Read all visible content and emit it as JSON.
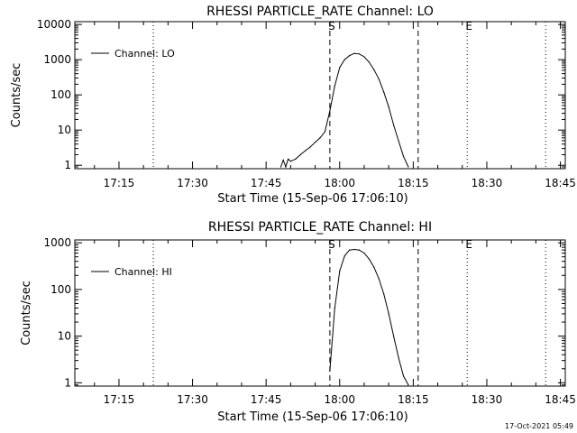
{
  "footer": {
    "timestamp": "17-Oct-2021 05:49"
  },
  "chart_data": [
    {
      "type": "line",
      "title": "RHESSI PARTICLE_RATE Channel: LO",
      "xlabel": "Start Time (15-Sep-06 17:06:10)",
      "ylabel": "Counts/sec",
      "log_y": true,
      "ylim": [
        0.8,
        12000
      ],
      "xlim": [
        "17:06",
        "18:46"
      ],
      "x_ticks": [
        "17:15",
        "17:30",
        "17:45",
        "18:00",
        "18:15",
        "18:30",
        "18:45"
      ],
      "y_ticks": [
        "1",
        "10",
        "100",
        "1000",
        "10000"
      ],
      "legend": {
        "position": "top-left",
        "entries": [
          "Channel: LO"
        ]
      },
      "markers": [
        {
          "time": "17:22",
          "style": "dotted",
          "label": ""
        },
        {
          "time": "17:58",
          "style": "dashed",
          "label": "S"
        },
        {
          "time": "18:16",
          "style": "dashed",
          "label": ""
        },
        {
          "time": "18:26",
          "style": "dotted",
          "label": "E"
        },
        {
          "time": "18:42",
          "style": "dotted",
          "label": ""
        }
      ],
      "series": [
        {
          "name": "Channel: LO",
          "x": [
            "17:48",
            "17:48:30",
            "17:49",
            "17:49:30",
            "17:50",
            "17:51",
            "17:52",
            "17:53",
            "17:54",
            "17:55",
            "17:56",
            "17:57",
            "17:58",
            "17:59",
            "18:00",
            "18:01",
            "18:02",
            "18:03",
            "18:04",
            "18:05",
            "18:06",
            "18:07",
            "18:08",
            "18:09",
            "18:10",
            "18:11",
            "18:12",
            "18:13",
            "18:14"
          ],
          "values": [
            0.9,
            1.4,
            0.9,
            1.5,
            1.3,
            1.5,
            2.0,
            2.6,
            3.3,
            4.5,
            6.0,
            9.0,
            35,
            180,
            600,
            1000,
            1300,
            1500,
            1450,
            1200,
            850,
            520,
            280,
            120,
            45,
            14,
            5,
            1.8,
            0.9
          ]
        }
      ]
    },
    {
      "type": "line",
      "title": "RHESSI PARTICLE_RATE Channel: HI",
      "xlabel": "Start Time (15-Sep-06 17:06:10)",
      "ylabel": "Counts/sec",
      "log_y": true,
      "ylim": [
        0.85,
        1150
      ],
      "xlim": [
        "17:06",
        "18:46"
      ],
      "x_ticks": [
        "17:15",
        "17:30",
        "17:45",
        "18:00",
        "18:15",
        "18:30",
        "18:45"
      ],
      "y_ticks": [
        "1",
        "10",
        "100",
        "1000"
      ],
      "legend": {
        "position": "top-left",
        "entries": [
          "Channel: HI"
        ]
      },
      "markers": [
        {
          "time": "17:22",
          "style": "dotted",
          "label": ""
        },
        {
          "time": "17:58",
          "style": "dashed",
          "label": "S"
        },
        {
          "time": "18:16",
          "style": "dashed",
          "label": ""
        },
        {
          "time": "18:26",
          "style": "dotted",
          "label": "E"
        },
        {
          "time": "18:42",
          "style": "dotted",
          "label": ""
        }
      ],
      "series": [
        {
          "name": "Channel: HI",
          "x": [
            "17:58",
            "17:59",
            "18:00",
            "18:01",
            "18:02",
            "18:03",
            "18:04",
            "18:05",
            "18:06",
            "18:07",
            "18:08",
            "18:09",
            "18:10",
            "18:11",
            "18:12",
            "18:13",
            "18:14"
          ],
          "values": [
            1.8,
            40,
            250,
            520,
            700,
            720,
            700,
            600,
            450,
            300,
            170,
            80,
            30,
            10,
            3.5,
            1.4,
            0.9
          ]
        }
      ]
    }
  ]
}
